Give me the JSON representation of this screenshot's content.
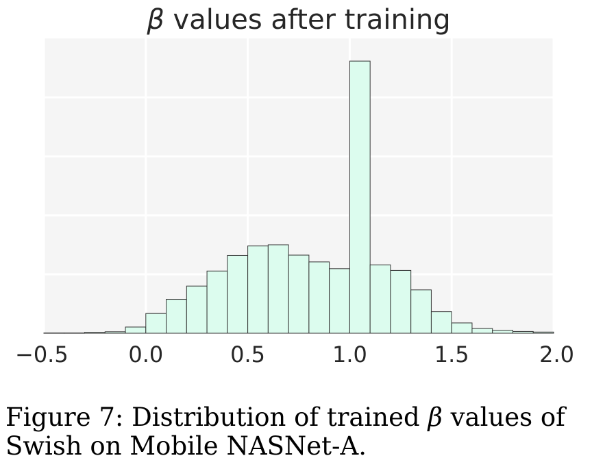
{
  "figure": {
    "caption_prefix": "Figure 7: Distribution of trained ",
    "caption_symbol": "β",
    "caption_suffix": " values of Swish on Mobile NASNet-A."
  },
  "chart_data": {
    "type": "bar",
    "title_symbol": "β",
    "title_text": " values after training",
    "xlabel": "",
    "ylabel": "",
    "xlim": [
      -0.5,
      2.0
    ],
    "xticks": [
      -0.5,
      0.0,
      0.5,
      1.0,
      1.5,
      2.0
    ],
    "xtick_labels": [
      "−0.5",
      "0.0",
      "0.5",
      "1.0",
      "1.5",
      "2.0"
    ],
    "ylim": [
      0,
      1.0
    ],
    "y_gridlines": [
      0.2,
      0.4,
      0.6,
      0.8
    ],
    "y_tick_labels_shown": false,
    "grid": true,
    "bin_edges": [
      -0.5,
      -0.4,
      -0.3,
      -0.2,
      -0.1,
      0.0,
      0.1,
      0.2,
      0.3,
      0.4,
      0.5,
      0.6,
      0.7,
      0.8,
      0.9,
      1.0,
      1.1,
      1.2,
      1.3,
      1.4,
      1.5,
      1.6,
      1.7,
      1.8,
      1.9,
      2.0
    ],
    "values": [
      0.001,
      0.001,
      0.003,
      0.005,
      0.021,
      0.067,
      0.115,
      0.16,
      0.211,
      0.264,
      0.296,
      0.3,
      0.265,
      0.242,
      0.219,
      0.923,
      0.232,
      0.213,
      0.147,
      0.073,
      0.035,
      0.016,
      0.01,
      0.006,
      0.004
    ],
    "colors": {
      "bar_fill": "#dcfcee",
      "bar_edge": "#333333",
      "plot_background": "#f5f5f5",
      "grid": "#ffffff",
      "text": "#262626"
    }
  }
}
